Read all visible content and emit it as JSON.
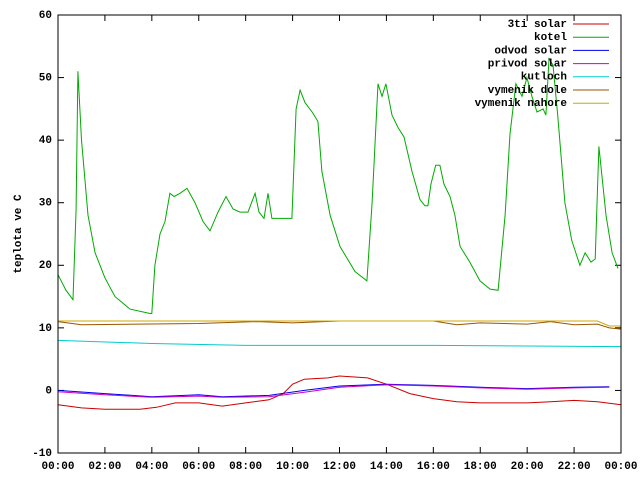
{
  "chart_data": {
    "type": "line",
    "ylabel": "teplota ve C",
    "xlim": [
      0,
      24
    ],
    "xticks": [
      {
        "value": 0,
        "label": "00:00"
      },
      {
        "value": 2,
        "label": "02:00"
      },
      {
        "value": 4,
        "label": "04:00"
      },
      {
        "value": 6,
        "label": "06:00"
      },
      {
        "value": 8,
        "label": "08:00"
      },
      {
        "value": 10,
        "label": "10:00"
      },
      {
        "value": 12,
        "label": "12:00"
      },
      {
        "value": 14,
        "label": "14:00"
      },
      {
        "value": 16,
        "label": "16:00"
      },
      {
        "value": 18,
        "label": "18:00"
      },
      {
        "value": 20,
        "label": "20:00"
      },
      {
        "value": 22,
        "label": "22:00"
      },
      {
        "value": 24,
        "label": "00:00"
      }
    ],
    "ylim": [
      -10,
      60
    ],
    "yticks": [
      -10,
      0,
      10,
      20,
      30,
      40,
      50,
      60
    ],
    "grid": false,
    "legend": "top-right",
    "series": [
      {
        "name": "3ti solar",
        "color": "#cc0000",
        "x": [
          0,
          1,
          2,
          3,
          3.5,
          4.2,
          5,
          6,
          7,
          8,
          9,
          9.6,
          10,
          10.5,
          11.5,
          12,
          13.2,
          14,
          15,
          16,
          17,
          18,
          20,
          21,
          22,
          23,
          24
        ],
        "values": [
          -2.3,
          -2.8,
          -3,
          -3,
          -3,
          -2.7,
          -2,
          -2,
          -2.5,
          -2,
          -1.5,
          -0.5,
          1,
          1.8,
          2,
          2.3,
          2,
          1,
          -0.5,
          -1.3,
          -1.8,
          -2,
          -2,
          -1.8,
          -1.6,
          -1.8,
          -2.3
        ]
      },
      {
        "name": "kotel",
        "color": "#00aa00",
        "x": [
          0,
          0.34,
          0.64,
          0.77,
          0.85,
          1.0,
          1.28,
          1.58,
          2.0,
          2.43,
          3.07,
          3.92,
          4.0,
          4.13,
          4.35,
          4.56,
          4.77,
          4.95,
          5.2,
          5.5,
          5.84,
          6.18,
          6.48,
          6.82,
          7.16,
          7.46,
          7.76,
          8.1,
          8.4,
          8.57,
          8.78,
          8.95,
          9.12,
          9.46,
          9.97,
          10.15,
          10.32,
          10.53,
          10.83,
          11.08,
          11.25,
          11.6,
          12.02,
          12.66,
          13.17,
          13.39,
          13.64,
          13.81,
          13.98,
          14.24,
          14.5,
          14.75,
          15.09,
          15.43,
          15.64,
          15.77,
          15.9,
          16.1,
          16.28,
          16.45,
          16.71,
          16.92,
          17.14,
          17.56,
          17.99,
          18.42,
          18.76,
          19.06,
          19.27,
          19.52,
          19.78,
          19.99,
          20.2,
          20.42,
          20.68,
          20.8,
          20.93,
          21.1,
          21.3,
          21.61,
          21.9,
          22.25,
          22.47,
          22.72,
          22.9,
          23.06,
          23.36,
          23.62,
          23.87
        ],
        "values": [
          18.5,
          16,
          14.5,
          29,
          51,
          40,
          28,
          22,
          18,
          15,
          13,
          12.3,
          12.3,
          20,
          25,
          27,
          31.5,
          31,
          31.5,
          32.3,
          30,
          27,
          25.5,
          28.5,
          31,
          29,
          28.5,
          28.5,
          31.5,
          28.5,
          27.5,
          31.5,
          27.5,
          27.5,
          27.5,
          45,
          48,
          46,
          44.5,
          43,
          35,
          28,
          23,
          19,
          17.5,
          30,
          49,
          47,
          49,
          44,
          42,
          40.5,
          35,
          30.5,
          29.5,
          29.5,
          33,
          36,
          36,
          33,
          31,
          28,
          23,
          20.5,
          17.5,
          16.2,
          16,
          28,
          41,
          49,
          47,
          50,
          47,
          44.5,
          45,
          44,
          53,
          52,
          44,
          30,
          24,
          20,
          22,
          20.5,
          21,
          39,
          28,
          22,
          19.5
        ]
      },
      {
        "name": "odvod solar",
        "color": "#0000ee",
        "x": [
          0,
          2,
          4,
          6,
          7,
          9,
          10.5,
          12,
          14,
          16,
          18,
          20,
          22,
          23.5
        ],
        "values": [
          0,
          -0.5,
          -1,
          -0.7,
          -1,
          -0.8,
          0,
          0.7,
          1,
          0.8,
          0.5,
          0.3,
          0.5,
          0.6
        ]
      },
      {
        "name": "privod solar",
        "color": "#cc00cc",
        "x": [
          0,
          2,
          4,
          6,
          7,
          9,
          10.5,
          12,
          14,
          16,
          18,
          20,
          22,
          23.5
        ],
        "values": [
          -0.2,
          -0.7,
          -1.1,
          -0.9,
          -1.1,
          -1,
          -0.3,
          0.5,
          0.9,
          0.7,
          0.4,
          0.2,
          0.4,
          0.5
        ]
      },
      {
        "name": "kutloch",
        "color": "#00cccc",
        "x": [
          0,
          4,
          8,
          12,
          16,
          20,
          24
        ],
        "values": [
          8,
          7.5,
          7.2,
          7.2,
          7.2,
          7.1,
          7
        ]
      },
      {
        "name": "vymenik dole",
        "color": "#995500",
        "x": [
          0,
          1,
          6,
          8.5,
          10,
          12,
          16,
          17,
          18,
          20,
          21,
          22,
          23,
          23.5,
          24
        ],
        "values": [
          11,
          10.5,
          10.7,
          11,
          10.8,
          11.1,
          11.1,
          10.5,
          10.8,
          10.6,
          11,
          10.5,
          10.6,
          10,
          9.8
        ]
      },
      {
        "name": "vymenik nahore",
        "color": "#ccaa00",
        "x": [
          0,
          12,
          23,
          23.5,
          24
        ],
        "values": [
          11.1,
          11.1,
          11.1,
          10.3,
          10.3
        ]
      }
    ]
  }
}
